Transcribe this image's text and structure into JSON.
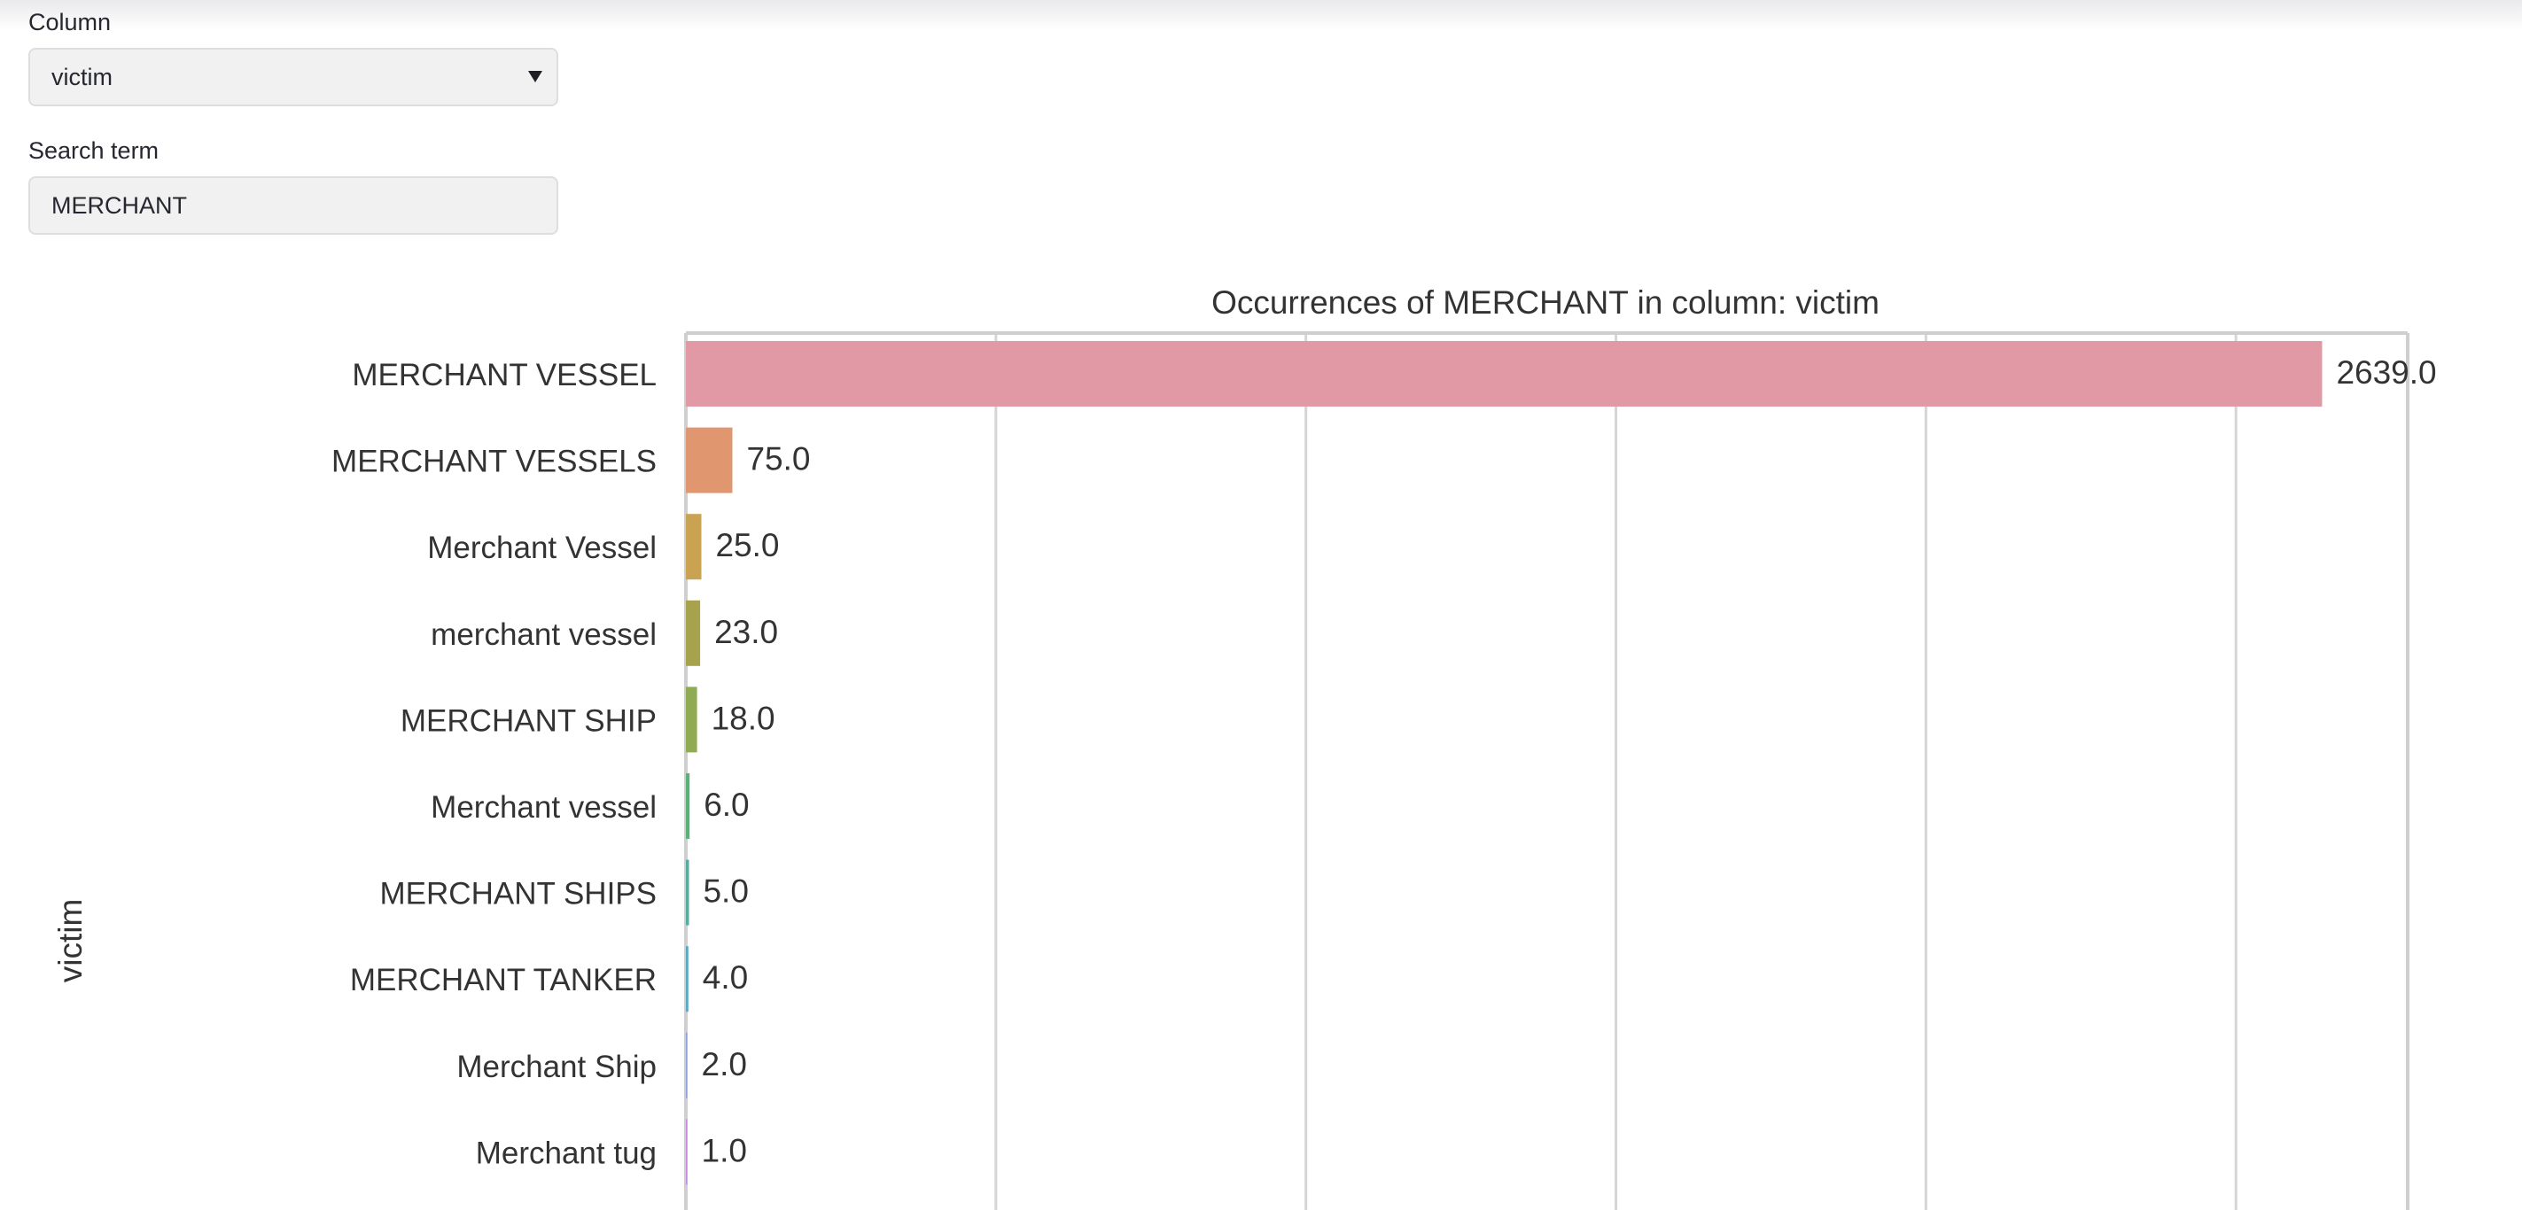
{
  "filters": {
    "column_label": "Column",
    "column_value": "victim",
    "search_label": "Search term",
    "search_value": "MERCHANT"
  },
  "chart_data": {
    "type": "bar",
    "orientation": "horizontal",
    "title": "Occurrences of MERCHANT in column: victim",
    "ylabel": "victim",
    "xlabel": "",
    "categories": [
      "MERCHANT VESSEL",
      "MERCHANT VESSELS",
      "Merchant Vessel",
      "merchant vessel",
      "MERCHANT SHIP",
      "Merchant vessel",
      "MERCHANT SHIPS",
      "MERCHANT TANKER",
      "Merchant Ship",
      "Merchant tug"
    ],
    "values": [
      2639.0,
      75.0,
      25.0,
      23.0,
      18.0,
      6.0,
      5.0,
      4.0,
      2.0,
      1.0
    ],
    "data_labels": [
      "2639.0",
      "75.0",
      "25.0",
      "23.0",
      "18.0",
      "6.0",
      "5.0",
      "4.0",
      "2.0",
      "1.0"
    ],
    "colors": [
      "#e19aa5",
      "#e0976f",
      "#c9a252",
      "#a7a34d",
      "#8fac55",
      "#5db07a",
      "#56ad9e",
      "#5aa9c4",
      "#8b9fe0",
      "#c68ae2"
    ],
    "xlim": [
      0,
      2777
    ],
    "grid": true
  }
}
